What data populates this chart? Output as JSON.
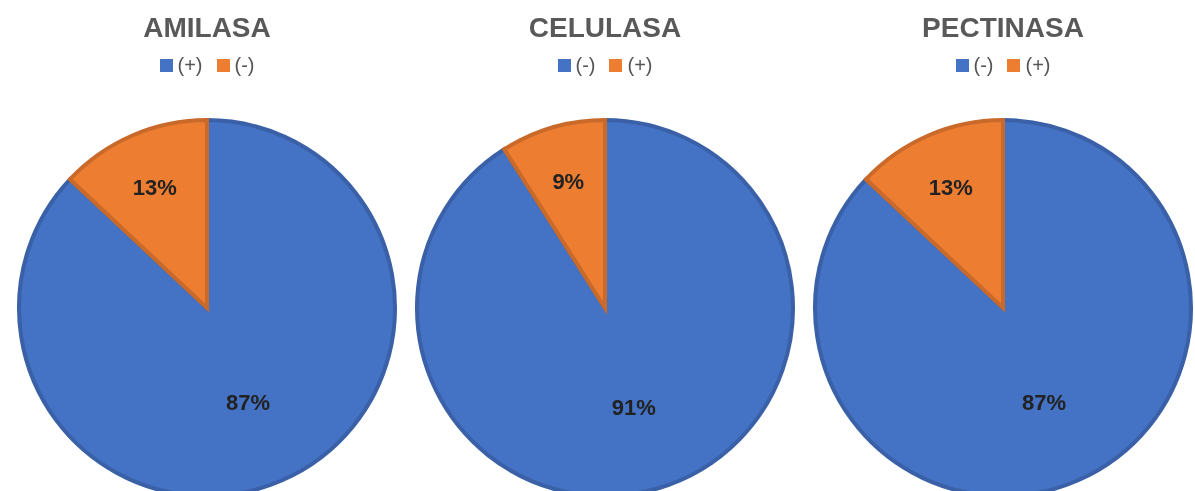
{
  "chart_data": [
    {
      "type": "pie",
      "title": "AMILASA",
      "categories": [
        "(+)",
        "(-)"
      ],
      "values": [
        87,
        13
      ],
      "colors": [
        "#4472c4",
        "#ed7d31"
      ],
      "value_labels": [
        "87%",
        "13%"
      ],
      "legend": "top"
    },
    {
      "type": "pie",
      "title": "CELULASA",
      "categories": [
        "(-)",
        "(+)"
      ],
      "values": [
        91,
        9
      ],
      "colors": [
        "#4472c4",
        "#ed7d31"
      ],
      "value_labels": [
        "91%",
        "9%"
      ],
      "legend": "top"
    },
    {
      "type": "pie",
      "title": "PECTINASA",
      "categories": [
        "(-)",
        "(+)"
      ],
      "values": [
        87,
        13
      ],
      "colors": [
        "#4472c4",
        "#ed7d31"
      ],
      "value_labels": [
        "87%",
        "13%"
      ],
      "legend": "top"
    }
  ]
}
